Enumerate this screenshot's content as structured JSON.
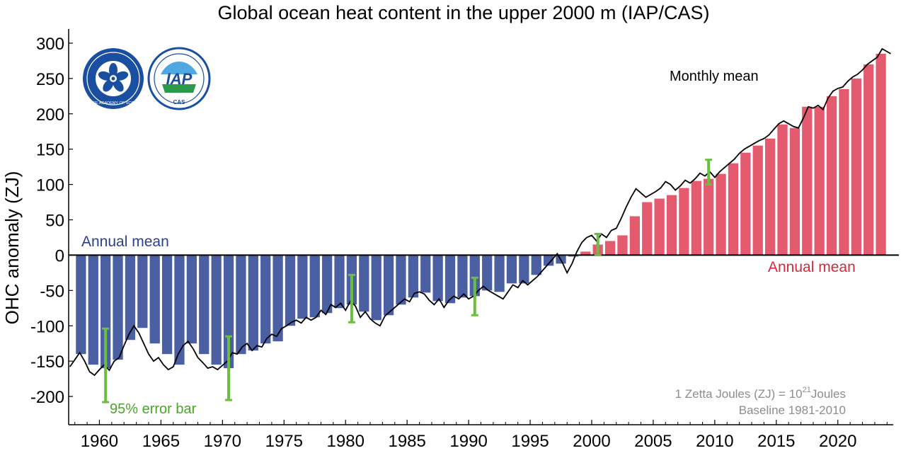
{
  "chart_data": {
    "type": "bar",
    "title": "Global ocean heat content in the upper 2000 m (IAP/CAS)",
    "xlabel": "",
    "ylabel": "OHC anomaly (ZJ)",
    "xlim": [
      1957.5,
      2024.5
    ],
    "ylim": [
      -240,
      320
    ],
    "x_ticks": [
      1960,
      1965,
      1970,
      1975,
      1980,
      1985,
      1990,
      1995,
      2000,
      2005,
      2010,
      2015,
      2020
    ],
    "y_ticks": [
      -200,
      -150,
      -100,
      -50,
      0,
      50,
      100,
      150,
      200,
      250,
      300
    ],
    "grid": false,
    "colors": {
      "negative_bars": "#4b5fa3",
      "positive_bars": "#e45a6e",
      "monthly_line": "#000000",
      "error_bars": "#6abf3f",
      "annual_mean_neg_label": "#2b3f8f",
      "annual_mean_pos_label": "#d42a3c",
      "note_text": "#8c8c8c"
    },
    "annual_series": {
      "name": "Annual mean",
      "years": [
        1958,
        1959,
        1960,
        1961,
        1962,
        1963,
        1964,
        1965,
        1966,
        1967,
        1968,
        1969,
        1970,
        1971,
        1972,
        1973,
        1974,
        1975,
        1976,
        1977,
        1978,
        1979,
        1980,
        1981,
        1982,
        1983,
        1984,
        1985,
        1986,
        1987,
        1988,
        1989,
        1990,
        1991,
        1992,
        1993,
        1994,
        1995,
        1996,
        1997,
        1998,
        1999,
        2000,
        2001,
        2002,
        2003,
        2004,
        2005,
        2006,
        2007,
        2008,
        2009,
        2010,
        2011,
        2012,
        2013,
        2014,
        2015,
        2016,
        2017,
        2018,
        2019,
        2020,
        2021,
        2022,
        2023
      ],
      "values": [
        -140,
        -155,
        -160,
        -148,
        -120,
        -103,
        -125,
        -140,
        -155,
        -125,
        -140,
        -155,
        -160,
        -140,
        -135,
        -125,
        -122,
        -100,
        -90,
        -88,
        -82,
        -75,
        -70,
        -80,
        -92,
        -85,
        -70,
        -60,
        -53,
        -65,
        -68,
        -60,
        -58,
        -50,
        -52,
        -40,
        -40,
        -28,
        -15,
        -12,
        -2,
        5,
        15,
        20,
        28,
        55,
        75,
        80,
        85,
        95,
        105,
        108,
        115,
        130,
        145,
        155,
        165,
        185,
        180,
        210,
        210,
        225,
        235,
        250,
        270,
        285
      ]
    },
    "monthly_series": {
      "name": "Monthly mean",
      "points": [
        [
          1957.6,
          -158
        ],
        [
          1958.0,
          -148
        ],
        [
          1958.4,
          -138
        ],
        [
          1958.8,
          -150
        ],
        [
          1959.2,
          -165
        ],
        [
          1959.6,
          -170
        ],
        [
          1960.0,
          -162
        ],
        [
          1960.4,
          -155
        ],
        [
          1960.8,
          -163
        ],
        [
          1961.2,
          -150
        ],
        [
          1961.6,
          -145
        ],
        [
          1962.0,
          -128
        ],
        [
          1962.4,
          -112
        ],
        [
          1962.8,
          -100
        ],
        [
          1963.2,
          -110
        ],
        [
          1963.6,
          -125
        ],
        [
          1964.0,
          -140
        ],
        [
          1964.4,
          -150
        ],
        [
          1964.8,
          -145
        ],
        [
          1965.2,
          -155
        ],
        [
          1965.6,
          -162
        ],
        [
          1966.0,
          -158
        ],
        [
          1966.4,
          -140
        ],
        [
          1966.8,
          -128
        ],
        [
          1967.2,
          -122
        ],
        [
          1967.6,
          -132
        ],
        [
          1968.0,
          -145
        ],
        [
          1968.4,
          -152
        ],
        [
          1968.8,
          -160
        ],
        [
          1969.2,
          -158
        ],
        [
          1969.6,
          -162
        ],
        [
          1970.0,
          -156
        ],
        [
          1970.4,
          -150
        ],
        [
          1970.8,
          -138
        ],
        [
          1971.2,
          -140
        ],
        [
          1971.6,
          -130
        ],
        [
          1972.0,
          -125
        ],
        [
          1972.4,
          -135
        ],
        [
          1972.8,
          -128
        ],
        [
          1973.2,
          -130
        ],
        [
          1973.6,
          -118
        ],
        [
          1974.0,
          -112
        ],
        [
          1974.4,
          -115
        ],
        [
          1974.8,
          -104
        ],
        [
          1975.2,
          -100
        ],
        [
          1975.6,
          -95
        ],
        [
          1976.0,
          -92
        ],
        [
          1976.4,
          -96
        ],
        [
          1976.8,
          -88
        ],
        [
          1977.2,
          -92
        ],
        [
          1977.6,
          -88
        ],
        [
          1978.0,
          -78
        ],
        [
          1978.4,
          -84
        ],
        [
          1978.8,
          -70
        ],
        [
          1979.2,
          -74
        ],
        [
          1979.6,
          -68
        ],
        [
          1980.0,
          -78
        ],
        [
          1980.4,
          -65
        ],
        [
          1980.8,
          -72
        ],
        [
          1981.2,
          -88
        ],
        [
          1981.6,
          -80
        ],
        [
          1982.0,
          -90
        ],
        [
          1982.4,
          -96
        ],
        [
          1982.8,
          -100
        ],
        [
          1983.2,
          -86
        ],
        [
          1983.6,
          -80
        ],
        [
          1984.0,
          -74
        ],
        [
          1984.4,
          -68
        ],
        [
          1984.8,
          -62
        ],
        [
          1985.2,
          -66
        ],
        [
          1985.6,
          -54
        ],
        [
          1986.0,
          -52
        ],
        [
          1986.4,
          -55
        ],
        [
          1986.8,
          -64
        ],
        [
          1987.2,
          -70
        ],
        [
          1987.6,
          -62
        ],
        [
          1988.0,
          -74
        ],
        [
          1988.4,
          -64
        ],
        [
          1988.8,
          -58
        ],
        [
          1989.2,
          -62
        ],
        [
          1989.6,
          -55
        ],
        [
          1990.0,
          -62
        ],
        [
          1990.4,
          -58
        ],
        [
          1990.8,
          -50
        ],
        [
          1991.2,
          -44
        ],
        [
          1991.6,
          -50
        ],
        [
          1992.0,
          -54
        ],
        [
          1992.4,
          -58
        ],
        [
          1992.8,
          -62
        ],
        [
          1993.2,
          -52
        ],
        [
          1993.6,
          -42
        ],
        [
          1994.0,
          -46
        ],
        [
          1994.4,
          -36
        ],
        [
          1994.8,
          -42
        ],
        [
          1995.2,
          -36
        ],
        [
          1995.6,
          -30
        ],
        [
          1996.0,
          -22
        ],
        [
          1996.4,
          -14
        ],
        [
          1996.8,
          -6
        ],
        [
          1997.2,
          2
        ],
        [
          1997.6,
          -10
        ],
        [
          1998.0,
          -25
        ],
        [
          1998.4,
          -12
        ],
        [
          1998.8,
          5
        ],
        [
          1999.2,
          18
        ],
        [
          1999.6,
          25
        ],
        [
          2000.0,
          28
        ],
        [
          2000.4,
          20
        ],
        [
          2000.8,
          30
        ],
        [
          2001.2,
          25
        ],
        [
          2001.6,
          35
        ],
        [
          2002.0,
          38
        ],
        [
          2002.4,
          52
        ],
        [
          2002.8,
          68
        ],
        [
          2003.2,
          82
        ],
        [
          2003.6,
          94
        ],
        [
          2004.0,
          88
        ],
        [
          2004.4,
          82
        ],
        [
          2004.8,
          86
        ],
        [
          2005.2,
          90
        ],
        [
          2005.6,
          95
        ],
        [
          2006.0,
          104
        ],
        [
          2006.4,
          100
        ],
        [
          2006.8,
          92
        ],
        [
          2007.2,
          98
        ],
        [
          2007.6,
          106
        ],
        [
          2008.0,
          102
        ],
        [
          2008.4,
          108
        ],
        [
          2008.8,
          116
        ],
        [
          2009.2,
          112
        ],
        [
          2009.6,
          118
        ],
        [
          2010.0,
          110
        ],
        [
          2010.4,
          118
        ],
        [
          2010.8,
          124
        ],
        [
          2011.2,
          130
        ],
        [
          2011.6,
          136
        ],
        [
          2012.0,
          144
        ],
        [
          2012.4,
          150
        ],
        [
          2012.8,
          154
        ],
        [
          2013.2,
          158
        ],
        [
          2013.6,
          162
        ],
        [
          2014.0,
          165
        ],
        [
          2014.4,
          170
        ],
        [
          2014.8,
          178
        ],
        [
          2015.2,
          186
        ],
        [
          2015.6,
          190
        ],
        [
          2016.0,
          186
        ],
        [
          2016.4,
          182
        ],
        [
          2016.8,
          180
        ],
        [
          2017.2,
          194
        ],
        [
          2017.6,
          210
        ],
        [
          2018.0,
          208
        ],
        [
          2018.4,
          212
        ],
        [
          2018.8,
          206
        ],
        [
          2019.2,
          222
        ],
        [
          2019.6,
          232
        ],
        [
          2020.0,
          236
        ],
        [
          2020.4,
          238
        ],
        [
          2020.8,
          246
        ],
        [
          2021.2,
          252
        ],
        [
          2021.6,
          256
        ],
        [
          2022.0,
          262
        ],
        [
          2022.4,
          270
        ],
        [
          2022.8,
          275
        ],
        [
          2023.2,
          280
        ],
        [
          2023.6,
          292
        ],
        [
          2024.0,
          288
        ],
        [
          2024.3,
          285
        ]
      ]
    },
    "error_bars": {
      "name": "95% error bar",
      "points": [
        {
          "x": 1960.5,
          "low": -208,
          "high": -104
        },
        {
          "x": 1970.5,
          "low": -205,
          "high": -115
        },
        {
          "x": 1980.5,
          "low": -95,
          "high": -28
        },
        {
          "x": 1990.5,
          "low": -85,
          "high": -32
        },
        {
          "x": 2000.5,
          "low": 0,
          "high": 30
        },
        {
          "x": 2009.5,
          "low": 100,
          "high": 135
        }
      ]
    },
    "annotations": {
      "annual_mean_negative": "Annual mean",
      "annual_mean_positive": "Annual mean",
      "monthly_mean": "Monthly mean",
      "error_bar_label": "95% error bar",
      "unit_note_prefix": "1 Zetta Joules (ZJ) = 10",
      "unit_note_exponent": "21",
      "unit_note_suffix": "Joules",
      "baseline_note": "Baseline 1981-2010"
    },
    "legend": "none"
  },
  "logos": {
    "left": {
      "name": "Chinese Academy of Sciences",
      "text": "CHINESE ACADEMY OF SCIENCES",
      "color": "#1a4ea0"
    },
    "right": {
      "name": "IAP",
      "text": "IAP",
      "subtext": "CAS",
      "color": "#1a4ea0"
    }
  }
}
